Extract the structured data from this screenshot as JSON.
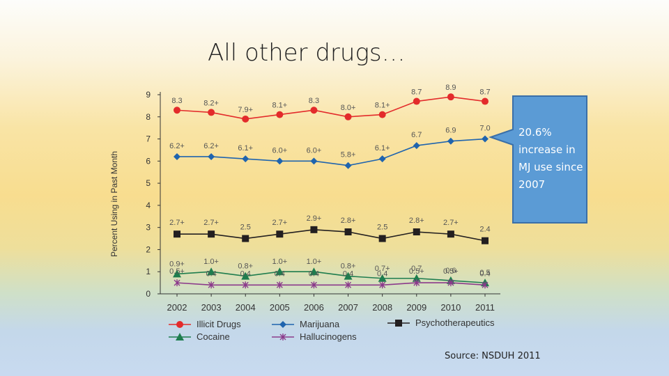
{
  "slide": {
    "title": "All other drugs…",
    "callout": "20.6% increase in MJ use since 2007",
    "source": "Source: NSDUH 2011"
  },
  "chart_data": {
    "type": "line",
    "ylabel": "Percent Using in Past Month",
    "xlabel": "",
    "ylim": [
      0,
      9
    ],
    "yticks": [
      0,
      1,
      2,
      3,
      4,
      5,
      6,
      7,
      8,
      9
    ],
    "x": [
      2002,
      2003,
      2004,
      2005,
      2006,
      2007,
      2008,
      2009,
      2010,
      2011
    ],
    "grid": false,
    "legend_position": "bottom",
    "series": [
      {
        "name": "Illicit Drugs",
        "color": "#e32b2b",
        "marker": "circle",
        "values": [
          8.3,
          8.2,
          7.9,
          8.1,
          8.3,
          8.0,
          8.1,
          8.7,
          8.9,
          8.7
        ],
        "labels": [
          "8.3",
          "8.2+",
          "7.9+",
          "8.1+",
          "8.3",
          "8.0+",
          "8.1+",
          "8.7",
          "8.9",
          "8.7"
        ]
      },
      {
        "name": "Marijuana",
        "color": "#1f64ae",
        "marker": "diamond",
        "values": [
          6.2,
          6.2,
          6.1,
          6.0,
          6.0,
          5.8,
          6.1,
          6.7,
          6.9,
          7.0
        ],
        "labels": [
          "6.2+",
          "6.2+",
          "6.1+",
          "6.0+",
          "6.0+",
          "5.8+",
          "6.1+",
          "6.7",
          "6.9",
          "7.0"
        ]
      },
      {
        "name": "Psychotherapeutics",
        "color": "#231f20",
        "marker": "square",
        "values": [
          2.7,
          2.7,
          2.5,
          2.7,
          2.9,
          2.8,
          2.5,
          2.8,
          2.7,
          2.4
        ],
        "labels": [
          "2.7+",
          "2.7+",
          "2.5",
          "2.7+",
          "2.9+",
          "2.8+",
          "2.5",
          "2.8+",
          "2.7+",
          "2.4"
        ]
      },
      {
        "name": "Cocaine",
        "color": "#1e7d4e",
        "marker": "triangle",
        "values": [
          0.9,
          1.0,
          0.8,
          1.0,
          1.0,
          0.8,
          0.7,
          0.7,
          0.6,
          0.5
        ],
        "labels": [
          "0.9+",
          "1.0+",
          "0.8+",
          "1.0+",
          "1.0+",
          "0.8+",
          "0.7+",
          "0.7",
          "0.6",
          "0.5"
        ]
      },
      {
        "name": "Hallucinogens",
        "color": "#8b3a8b",
        "marker": "cross",
        "values": [
          0.5,
          0.4,
          0.4,
          0.4,
          0.4,
          0.4,
          0.4,
          0.5,
          0.5,
          0.4
        ],
        "labels": [
          "0.5+",
          "0.4",
          "0.4",
          "0.4",
          "0.4",
          "0.4",
          "0.4",
          "0.5+",
          "0.5+",
          "0.4"
        ]
      }
    ]
  }
}
